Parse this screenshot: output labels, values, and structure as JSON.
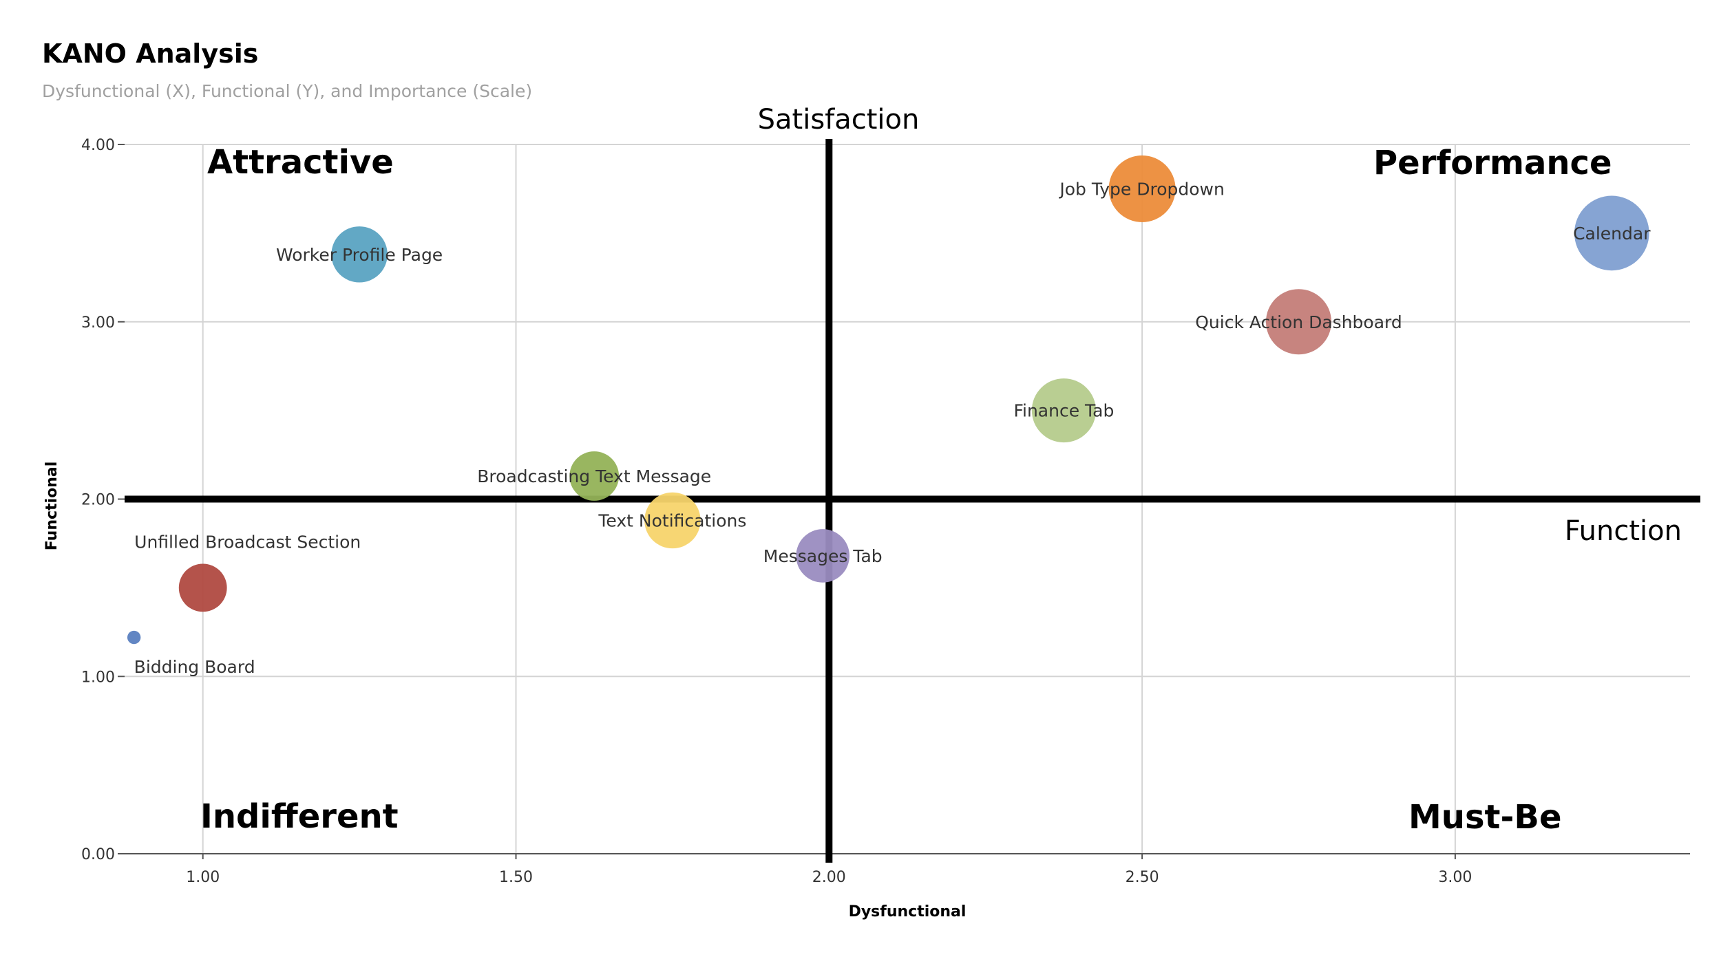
{
  "title": "KANO Analysis",
  "subtitle": "Dysfunctional (X), Functional (Y), and Importance (Scale)",
  "chart_data": {
    "type": "scatter",
    "variant": "bubble",
    "title": "KANO Analysis",
    "subtitle": "Dysfunctional (X), Functional (Y), and Importance (Scale)",
    "xlabel": "Dysfunctional",
    "ylabel": "Functional",
    "xlim": [
      0.875,
      3.375
    ],
    "ylim": [
      0,
      4
    ],
    "x_ticks": [
      1.0,
      1.5,
      2.0,
      2.5,
      3.0
    ],
    "x_tick_labels": [
      "1.00",
      "1.50",
      "2.00",
      "2.50",
      "3.00"
    ],
    "y_ticks": [
      0,
      1,
      2,
      3,
      4
    ],
    "y_tick_labels": [
      "0.00",
      "1.00",
      "2.00",
      "3.00",
      "4.00"
    ],
    "grid": true,
    "axis_lines": {
      "satisfaction_x": 2.0,
      "function_y": 2.0,
      "satisfaction_label": "Satisfaction",
      "function_label": "Function"
    },
    "quadrants": {
      "top_left": "Attractive",
      "top_right": "Performance",
      "bottom_left": "Indifferent",
      "bottom_right": "Must-Be"
    },
    "points": [
      {
        "label": "Worker Profile Page",
        "x": 1.25,
        "y": 3.38,
        "importance": 4.2,
        "color": "#5aa3c2",
        "label_pos": "center"
      },
      {
        "label": "Job Type Dropdown",
        "x": 2.5,
        "y": 3.75,
        "importance": 5.0,
        "color": "#ec8c3a",
        "label_pos": "center"
      },
      {
        "label": "Calendar",
        "x": 3.25,
        "y": 3.5,
        "importance": 5.6,
        "color": "#7f9fd1",
        "label_pos": "center"
      },
      {
        "label": "Quick Action Dashboard",
        "x": 2.75,
        "y": 3.0,
        "importance": 4.9,
        "color": "#c47d78",
        "label_pos": "center"
      },
      {
        "label": "Finance Tab",
        "x": 2.375,
        "y": 2.5,
        "importance": 4.8,
        "color": "#b5cb8c",
        "label_pos": "center"
      },
      {
        "label": "Broadcasting Text Message",
        "x": 1.625,
        "y": 2.13,
        "importance": 3.7,
        "color": "#93b257",
        "label_pos": "center"
      },
      {
        "label": "Text Notifications",
        "x": 1.75,
        "y": 1.88,
        "importance": 4.2,
        "color": "#f7d46b",
        "label_pos": "center"
      },
      {
        "label": "Messages Tab",
        "x": 1.99,
        "y": 1.68,
        "importance": 4.0,
        "color": "#9a8cc0",
        "label_pos": "center"
      },
      {
        "label": "Unfilled Broadcast Section",
        "x": 1.0,
        "y": 1.5,
        "importance": 3.6,
        "color": "#b04a41",
        "label_pos": "above"
      },
      {
        "label": "Bidding Board",
        "x": 0.89,
        "y": 1.22,
        "importance": 1.0,
        "color": "#5a7fc0",
        "label_pos": "below"
      }
    ]
  }
}
